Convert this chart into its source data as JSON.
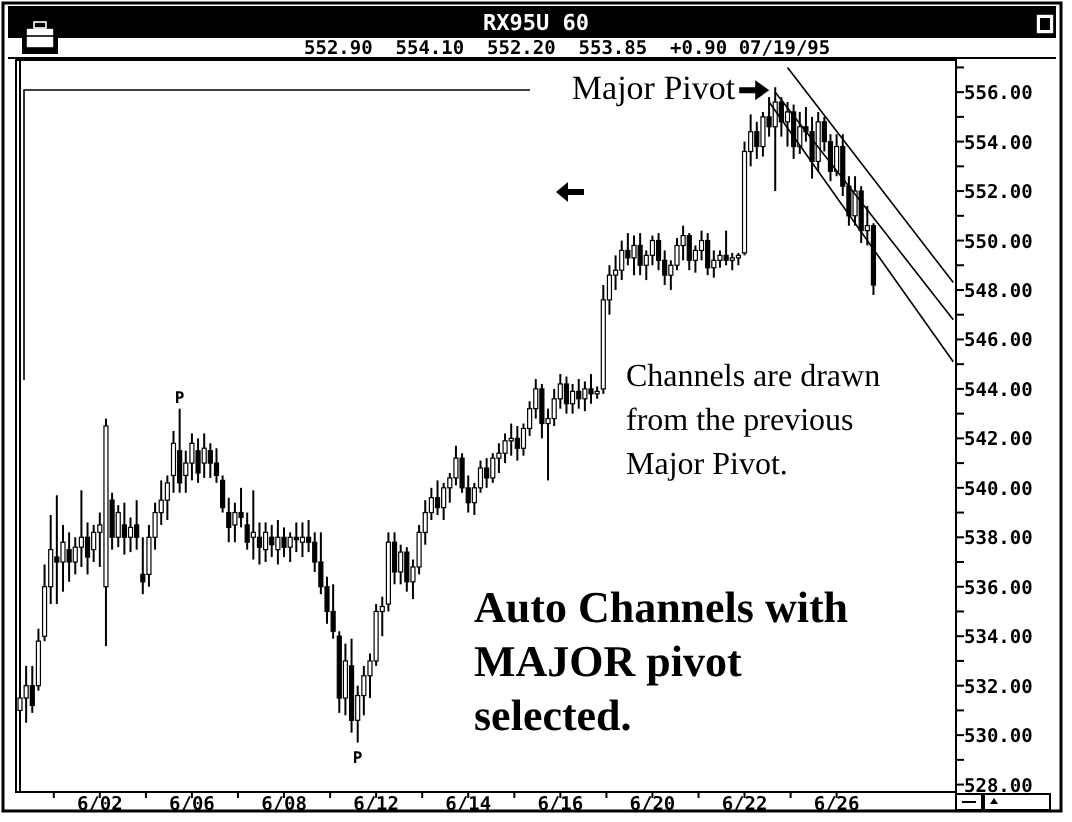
{
  "chart_data": {
    "type": "candlestick",
    "title": "RX95U 60",
    "subtitle": "552.90  554.10  552.20  553.85  +0.90 07/19/95",
    "color": "#000000",
    "grid": false,
    "legend": false,
    "categories": [
      null,
      null,
      null,
      null,
      null,
      null,
      null,
      null,
      null,
      null,
      null,
      null,
      null,
      "6/02",
      null,
      null,
      null,
      null,
      null,
      null,
      null,
      null,
      null,
      null,
      null,
      null,
      null,
      null,
      "6/06",
      null,
      null,
      null,
      null,
      null,
      null,
      null,
      null,
      null,
      null,
      null,
      null,
      null,
      null,
      "6/08",
      null,
      null,
      null,
      null,
      null,
      null,
      null,
      null,
      null,
      null,
      null,
      null,
      null,
      null,
      "6/12",
      null,
      null,
      null,
      null,
      null,
      null,
      null,
      null,
      null,
      null,
      null,
      null,
      null,
      null,
      "6/14",
      null,
      null,
      null,
      null,
      null,
      null,
      null,
      null,
      null,
      null,
      null,
      null,
      null,
      null,
      "6/16",
      null,
      null,
      null,
      null,
      null,
      null,
      null,
      null,
      null,
      null,
      null,
      null,
      null,
      null,
      "6/20",
      null,
      null,
      null,
      null,
      null,
      null,
      null,
      null,
      null,
      null,
      null,
      null,
      null,
      null,
      "6/22",
      null,
      null,
      null,
      null,
      null,
      null,
      null,
      null,
      null,
      null,
      null,
      null,
      null,
      null,
      "6/26",
      null,
      null,
      null,
      null,
      null,
      null,
      null,
      null,
      null,
      null,
      null,
      null,
      null,
      null,
      null,
      null,
      null,
      null,
      null
    ],
    "ohlc": [
      [
        531,
        532.2,
        529.3,
        531.5
      ],
      [
        531.5,
        532.8,
        530.5,
        532
      ],
      [
        532,
        532.8,
        530.9,
        531.2
      ],
      [
        532,
        534.3,
        531.8,
        533.8
      ],
      [
        534,
        536.9,
        533.8,
        536
      ],
      [
        536,
        538.9,
        535.3,
        537.5
      ],
      [
        537.2,
        539.7,
        535.3,
        537
      ],
      [
        537,
        538.5,
        535.8,
        537.8
      ],
      [
        537.5,
        538.2,
        536.2,
        537
      ],
      [
        537,
        538,
        536.5,
        537.6
      ],
      [
        537.6,
        539.9,
        536.8,
        538
      ],
      [
        538,
        538.6,
        536.5,
        537.2
      ],
      [
        537.5,
        538.5,
        537,
        538.2
      ],
      [
        538.2,
        539,
        536.8,
        538.5
      ],
      [
        536,
        542.8,
        533.6,
        542.5
      ],
      [
        539.5,
        539.8,
        537.5,
        538
      ],
      [
        538,
        539.3,
        537.6,
        539
      ],
      [
        538.5,
        539.4,
        537.3,
        538
      ],
      [
        538,
        538.8,
        537.4,
        538.4
      ],
      [
        538.5,
        539.5,
        537.5,
        538
      ],
      [
        536.5,
        538,
        535.7,
        536.2
      ],
      [
        536.5,
        538.5,
        536,
        538
      ],
      [
        538,
        539.4,
        537.5,
        539
      ],
      [
        539,
        540.3,
        538.5,
        539.5
      ],
      [
        539.5,
        540.5,
        538.7,
        540.2
      ],
      [
        540.5,
        542.3,
        539.8,
        541.8
      ],
      [
        541.5,
        543.2,
        539.8,
        540.2
      ],
      [
        540.5,
        541.5,
        539.8,
        541
      ],
      [
        541,
        542.2,
        540.3,
        541.8
      ],
      [
        541.5,
        542,
        540.2,
        540.6
      ],
      [
        541,
        542.2,
        540.4,
        541.6
      ],
      [
        541.5,
        541.8,
        540.4,
        541
      ],
      [
        541,
        541.6,
        540.2,
        540.5
      ],
      [
        540.3,
        540.5,
        539,
        539.2
      ],
      [
        539,
        539.6,
        537.8,
        538.4
      ],
      [
        538.5,
        539.4,
        537.8,
        539
      ],
      [
        539,
        540,
        538.4,
        538.8
      ],
      [
        538.5,
        539,
        537.5,
        537.8
      ],
      [
        538,
        539.9,
        537.1,
        538.2
      ],
      [
        538,
        538.6,
        536.9,
        537.6
      ],
      [
        537.5,
        538.6,
        537,
        538.2
      ],
      [
        538,
        538.5,
        537.2,
        537.7
      ],
      [
        537.5,
        538.7,
        536.9,
        538
      ],
      [
        538,
        538.4,
        537.2,
        537.6
      ],
      [
        537.6,
        538.2,
        537,
        538
      ],
      [
        538,
        538.6,
        537.4,
        537.9
      ],
      [
        537.8,
        538.6,
        537.2,
        538
      ],
      [
        538,
        538.7,
        537.4,
        537.8
      ],
      [
        537.8,
        538.2,
        536.6,
        537
      ],
      [
        537,
        538.2,
        535.7,
        536
      ],
      [
        536,
        536.4,
        534.5,
        535
      ],
      [
        535,
        536.1,
        533.9,
        534.2
      ],
      [
        534,
        534.2,
        530.9,
        531.5
      ],
      [
        531.5,
        533.7,
        530.8,
        533
      ],
      [
        532.8,
        533.9,
        530.1,
        530.6
      ],
      [
        530.6,
        532,
        529.7,
        531.6
      ],
      [
        531.6,
        532.8,
        530.8,
        532.4
      ],
      [
        532.4,
        533.3,
        531.5,
        533
      ],
      [
        533,
        535.3,
        532.8,
        535
      ],
      [
        535,
        535.6,
        534,
        535.2
      ],
      [
        535.3,
        538.2,
        535,
        537.8
      ],
      [
        537.8,
        538.2,
        536.1,
        536.6
      ],
      [
        536.6,
        537.7,
        536.1,
        537.4
      ],
      [
        537.4,
        537.6,
        535.8,
        536.2
      ],
      [
        536.2,
        537.1,
        535.5,
        536.8
      ],
      [
        536.8,
        538.5,
        536.5,
        538.2
      ],
      [
        538.2,
        539.5,
        537.7,
        539
      ],
      [
        539,
        540,
        538.7,
        539.6
      ],
      [
        539.6,
        540.3,
        538.9,
        539.2
      ],
      [
        539.2,
        540.2,
        538.7,
        540
      ],
      [
        540,
        540.6,
        539.4,
        540.4
      ],
      [
        540.4,
        541.7,
        540.1,
        541.2
      ],
      [
        541.2,
        541.4,
        539.8,
        540
      ],
      [
        540,
        540.5,
        539,
        539.4
      ],
      [
        539.4,
        540.2,
        538.9,
        540
      ],
      [
        540,
        541.1,
        539.8,
        540.8
      ],
      [
        540.8,
        541.2,
        540,
        540.4
      ],
      [
        540.4,
        541.4,
        540.2,
        541.2
      ],
      [
        541.2,
        541.8,
        540.6,
        541.4
      ],
      [
        541.4,
        542.2,
        541,
        541.9
      ],
      [
        541.9,
        542.6,
        541.3,
        542
      ],
      [
        542,
        542.5,
        541.1,
        541.6
      ],
      [
        541.6,
        542.6,
        541.3,
        542.4
      ],
      [
        542.4,
        543.5,
        542.1,
        543.2
      ],
      [
        543.2,
        544.4,
        542.8,
        544
      ],
      [
        544,
        544.2,
        542,
        542.6
      ],
      [
        542.6,
        543.2,
        540.3,
        542.8
      ],
      [
        542.8,
        544,
        542.5,
        543.6
      ],
      [
        543.6,
        544.6,
        543.2,
        544.2
      ],
      [
        544.2,
        544.5,
        543,
        543.4
      ],
      [
        543.4,
        544.2,
        543,
        543.9
      ],
      [
        543.9,
        544.4,
        543.2,
        543.6
      ],
      [
        543.6,
        544.3,
        543.1,
        544
      ],
      [
        544,
        544.6,
        543.4,
        543.8
      ],
      [
        543.8,
        544.1,
        543.6,
        543.9
      ],
      [
        544,
        548.2,
        543.8,
        547.6
      ],
      [
        547.6,
        549,
        547,
        548.6
      ],
      [
        548.6,
        549.4,
        548,
        548.8
      ],
      [
        548.8,
        550,
        548.4,
        549.6
      ],
      [
        549.6,
        550.3,
        549,
        549.3
      ],
      [
        549.3,
        550.2,
        548.6,
        549.8
      ],
      [
        549.8,
        550.3,
        548.6,
        549
      ],
      [
        549,
        549.6,
        548.4,
        549.4
      ],
      [
        549.4,
        550.2,
        549,
        550
      ],
      [
        550,
        550.3,
        548.8,
        549.2
      ],
      [
        549.2,
        549.6,
        548.2,
        548.6
      ],
      [
        548.6,
        549.2,
        548,
        549
      ],
      [
        549,
        550.1,
        548.8,
        549.8
      ],
      [
        549.8,
        550.6,
        549.2,
        550.2
      ],
      [
        550.2,
        550.3,
        548.8,
        549.2
      ],
      [
        549.2,
        549.8,
        548.7,
        549.6
      ],
      [
        549.6,
        550.4,
        549.2,
        550
      ],
      [
        550,
        550.3,
        548.6,
        548.9
      ],
      [
        548.9,
        549.6,
        548.5,
        549.2
      ],
      [
        549.2,
        549.6,
        548.9,
        549.4
      ],
      [
        549.4,
        550.4,
        549,
        549.2
      ],
      [
        549.2,
        549.5,
        548.8,
        549.3
      ],
      [
        549.3,
        549.5,
        549,
        549.4
      ],
      [
        549.5,
        554,
        549.4,
        553.6
      ],
      [
        553.6,
        555.1,
        553,
        554.4
      ],
      [
        554.4,
        554.8,
        553.3,
        553.8
      ],
      [
        553.8,
        555.2,
        553.4,
        555
      ],
      [
        555,
        555.8,
        554.2,
        554.6
      ],
      [
        554.6,
        556.2,
        552,
        555.6
      ],
      [
        555.6,
        555.8,
        554.2,
        554.8
      ],
      [
        554.8,
        555.6,
        553.8,
        555.2
      ],
      [
        555.2,
        555.5,
        553.3,
        553.8
      ],
      [
        553.8,
        555.2,
        553.5,
        554.6
      ],
      [
        554.6,
        555.4,
        554,
        554.4
      ],
      [
        554.4,
        555,
        552.5,
        553.2
      ],
      [
        553.2,
        555.2,
        552.8,
        554.8
      ],
      [
        554.8,
        555,
        553.6,
        554
      ],
      [
        554,
        554.3,
        552.4,
        552.8
      ],
      [
        552.8,
        554.3,
        552.6,
        553.8
      ],
      [
        553.8,
        554.3,
        551.8,
        552.2
      ],
      [
        552.2,
        552.6,
        550.6,
        551
      ],
      [
        551,
        552.6,
        550.6,
        552
      ],
      [
        552,
        552.2,
        549.9,
        550.4
      ],
      [
        550.4,
        551.4,
        549.8,
        550.6
      ],
      [
        550.6,
        550.7,
        547.8,
        548.2
      ],
      null,
      null,
      null,
      null,
      null,
      null,
      null,
      null,
      null,
      null,
      null,
      null,
      null
    ],
    "series": [
      {
        "type": "line",
        "color": "#000000",
        "values": [
          null,
          null,
          null,
          null,
          null,
          null,
          null,
          null,
          null,
          null,
          null,
          null,
          null,
          null,
          null,
          null,
          null,
          null,
          null,
          null,
          null,
          null,
          null,
          null,
          null,
          null,
          null,
          null,
          null,
          null,
          null,
          null,
          null,
          null,
          null,
          null,
          null,
          null,
          null,
          null,
          null,
          null,
          null,
          null,
          null,
          null,
          null,
          null,
          null,
          null,
          null,
          null,
          null,
          null,
          null,
          null,
          null,
          null,
          null,
          null,
          null,
          null,
          null,
          null,
          null,
          null,
          null,
          null,
          null,
          null,
          null,
          null,
          null,
          null,
          null,
          null,
          null,
          null,
          null,
          null,
          null,
          null,
          null,
          null,
          null,
          null,
          null,
          null,
          null,
          null,
          null,
          null,
          null,
          null,
          null,
          null,
          null,
          null,
          null,
          null,
          null,
          null,
          null,
          null,
          null,
          null,
          null,
          null,
          null,
          null,
          null,
          null,
          null,
          null,
          null,
          null,
          null,
          null,
          null,
          null,
          null,
          null,
          null,
          null,
          null,
          557.0,
          null,
          null,
          null,
          null,
          null,
          null,
          null,
          null,
          null,
          null,
          null,
          null,
          null,
          null,
          null,
          null,
          null,
          null,
          null,
          null,
          null,
          null,
          null,
          null,
          null,
          null,
          548.3
        ]
      },
      {
        "type": "line",
        "color": "#000000",
        "values": [
          null,
          null,
          null,
          null,
          null,
          null,
          null,
          null,
          null,
          null,
          null,
          null,
          null,
          null,
          null,
          null,
          null,
          null,
          null,
          null,
          null,
          null,
          null,
          null,
          null,
          null,
          null,
          null,
          null,
          null,
          null,
          null,
          null,
          null,
          null,
          null,
          null,
          null,
          null,
          null,
          null,
          null,
          null,
          null,
          null,
          null,
          null,
          null,
          null,
          null,
          null,
          null,
          null,
          null,
          null,
          null,
          null,
          null,
          null,
          null,
          null,
          null,
          null,
          null,
          null,
          null,
          null,
          null,
          null,
          null,
          null,
          null,
          null,
          null,
          null,
          null,
          null,
          null,
          null,
          null,
          null,
          null,
          null,
          null,
          null,
          null,
          null,
          null,
          null,
          null,
          null,
          null,
          null,
          null,
          null,
          null,
          null,
          null,
          null,
          null,
          null,
          null,
          null,
          null,
          null,
          null,
          null,
          null,
          null,
          null,
          null,
          null,
          null,
          null,
          null,
          null,
          null,
          null,
          null,
          null,
          null,
          null,
          null,
          556.0,
          null,
          null,
          null,
          null,
          null,
          null,
          null,
          null,
          null,
          null,
          null,
          null,
          null,
          null,
          null,
          null,
          null,
          null,
          null,
          null,
          null,
          null,
          null,
          null,
          null,
          null,
          null,
          null,
          546.8
        ]
      },
      {
        "type": "line",
        "color": "#000000",
        "values": [
          null,
          null,
          null,
          null,
          null,
          null,
          null,
          null,
          null,
          null,
          null,
          null,
          null,
          null,
          null,
          null,
          null,
          null,
          null,
          null,
          null,
          null,
          null,
          null,
          null,
          null,
          null,
          null,
          null,
          null,
          null,
          null,
          null,
          null,
          null,
          null,
          null,
          null,
          null,
          null,
          null,
          null,
          null,
          null,
          null,
          null,
          null,
          null,
          null,
          null,
          null,
          null,
          null,
          null,
          null,
          null,
          null,
          null,
          null,
          null,
          null,
          null,
          null,
          null,
          null,
          null,
          null,
          null,
          null,
          null,
          null,
          null,
          null,
          null,
          null,
          null,
          null,
          null,
          null,
          null,
          null,
          null,
          null,
          null,
          null,
          null,
          null,
          null,
          null,
          null,
          null,
          null,
          null,
          null,
          null,
          null,
          null,
          null,
          null,
          null,
          null,
          null,
          null,
          null,
          null,
          null,
          null,
          null,
          null,
          null,
          null,
          null,
          null,
          null,
          null,
          null,
          null,
          null,
          null,
          null,
          null,
          null,
          555.6,
          null,
          null,
          null,
          null,
          null,
          null,
          null,
          null,
          null,
          null,
          null,
          null,
          null,
          null,
          null,
          null,
          null,
          null,
          null,
          null,
          null,
          null,
          null,
          null,
          null,
          null,
          null,
          null,
          null,
          545.1
        ]
      }
    ],
    "ylim": [
      527.7,
      557.3
    ],
    "yticks": [
      {
        "value": 528,
        "label": "528.00"
      },
      {
        "value": 529,
        "label": null
      },
      {
        "value": 530,
        "label": "530.00"
      },
      {
        "value": 531,
        "label": null
      },
      {
        "value": 532,
        "label": "532.00"
      },
      {
        "value": 533,
        "label": null
      },
      {
        "value": 534,
        "label": "534.00"
      },
      {
        "value": 535,
        "label": null
      },
      {
        "value": 536,
        "label": "536.00"
      },
      {
        "value": 537,
        "label": null
      },
      {
        "value": 538,
        "label": "538.00"
      },
      {
        "value": 539,
        "label": null
      },
      {
        "value": 540,
        "label": "540.00"
      },
      {
        "value": 541,
        "label": null
      },
      {
        "value": 542,
        "label": "542.00"
      },
      {
        "value": 543,
        "label": null
      },
      {
        "value": 544,
        "label": "544.00"
      },
      {
        "value": 545,
        "label": null
      },
      {
        "value": 546,
        "label": "546.00"
      },
      {
        "value": 547,
        "label": null
      },
      {
        "value": 548,
        "label": "548.00"
      },
      {
        "value": 549,
        "label": null
      },
      {
        "value": 550,
        "label": "550.00"
      },
      {
        "value": 551,
        "label": null
      },
      {
        "value": 552,
        "label": "552.00"
      },
      {
        "value": 553,
        "label": null
      },
      {
        "value": 554,
        "label": "554.00"
      },
      {
        "value": 555,
        "label": null
      },
      {
        "value": 556,
        "label": "556.00"
      },
      {
        "value": 557,
        "label": null
      }
    ],
    "annotations": [
      "Major Pivot",
      "P",
      "P",
      "Channels are drawn from the previous Major Pivot.",
      "Auto Channels with MAJOR pivot selected."
    ]
  }
}
